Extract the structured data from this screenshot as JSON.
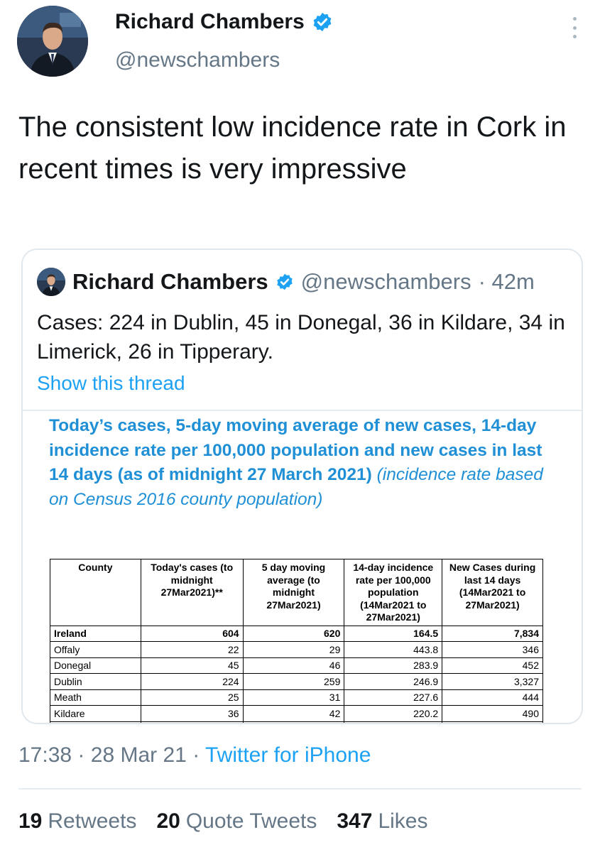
{
  "author": {
    "name": "Richard Chambers",
    "handle": "@newschambers"
  },
  "tweet": {
    "text": "The consistent low incidence rate in Cork in recent times is very impressive",
    "time": "17:38",
    "date": "28 Mar 21",
    "separator": "·",
    "source": "Twitter for iPhone"
  },
  "quoted": {
    "name": "Richard Chambers",
    "handle": "@newschambers",
    "age": "· 42m",
    "text": "Cases: 224 in Dublin, 45 in Donegal, 36 in Kildare, 34 in Limerick, 26 in Tipperary.",
    "show_thread": "Show this thread",
    "image": {
      "title_bold": "Today’s cases, 5-day moving average of new cases, 14-day incidence rate per 100,000 population and new cases in last 14 days (as of midnight 27 March 2021)",
      "title_italic": "(incidence rate based on Census 2016 county population)",
      "columns": [
        "County",
        "Today's cases (to midnight 27Mar2021)**",
        "5 day moving average (to midnight 27Mar2021)",
        "14-day incidence rate per 100,000 population (14Mar2021 to 27Mar2021)",
        "New Cases during last 14 days (14Mar2021 to 27Mar2021)"
      ],
      "rows": [
        [
          "Ireland",
          "604",
          "620",
          "164.5",
          "7,834"
        ],
        [
          "Offaly",
          "22",
          "29",
          "443.8",
          "346"
        ],
        [
          "Donegal",
          "45",
          "46",
          "283.9",
          "452"
        ],
        [
          "Dublin",
          "224",
          "259",
          "246.9",
          "3,327"
        ],
        [
          "Meath",
          "25",
          "31",
          "227.6",
          "444"
        ],
        [
          "Kildare",
          "36",
          "42",
          "220.2",
          "490"
        ]
      ]
    }
  },
  "stats": {
    "retweets_count": "19",
    "retweets_label": "Retweets",
    "quotes_count": "20",
    "quotes_label": "Quote Tweets",
    "likes_count": "347",
    "likes_label": "Likes"
  },
  "colors": {
    "accent": "#1da1f2",
    "muted": "#657786",
    "table_title": "#1f8fd6"
  }
}
